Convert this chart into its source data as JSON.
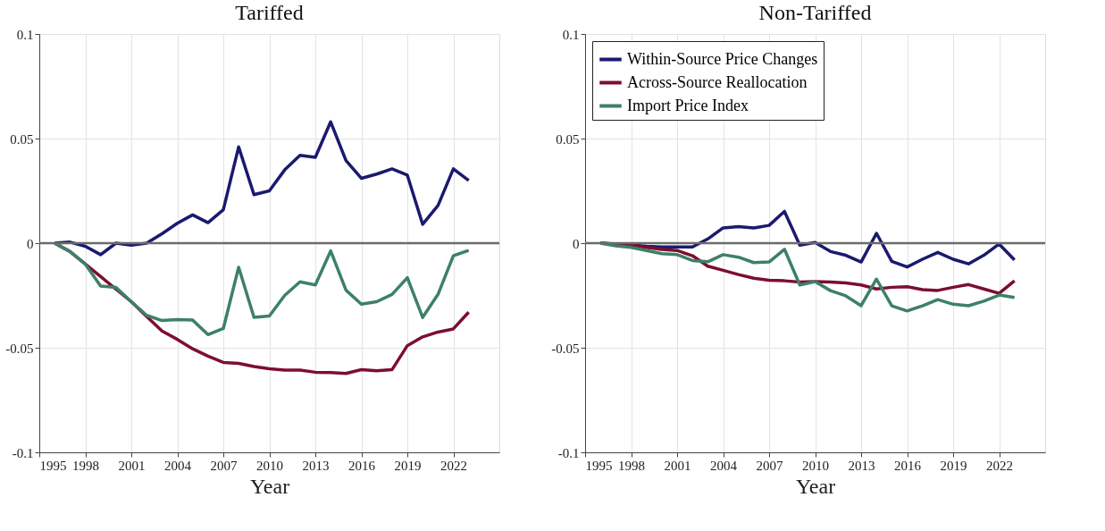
{
  "chart_data": [
    {
      "type": "line",
      "title": "Tariffed",
      "xlabel": "Year",
      "xlim": [
        1995,
        2025
      ],
      "xticks": [
        1995,
        1998,
        2001,
        2004,
        2007,
        2010,
        2013,
        2016,
        2019,
        2022
      ],
      "ylim": [
        -0.1,
        0.1
      ],
      "yticks": [
        -0.1,
        -0.05,
        0,
        0.05,
        0.1
      ],
      "grid": true,
      "legend": false,
      "line_style": "solid",
      "marker": "none",
      "x": [
        1996,
        1997,
        1998,
        1999,
        2000,
        2001,
        2002,
        2003,
        2004,
        2005,
        2006,
        2007,
        2008,
        2009,
        2010,
        2011,
        2012,
        2013,
        2014,
        2015,
        2016,
        2017,
        2018,
        2019,
        2020,
        2021,
        2022,
        2023
      ],
      "ref_lines": [
        {
          "axis": "y",
          "value": 0,
          "color": "#6b6b6b"
        }
      ],
      "series": [
        {
          "color": "#1a1a6e",
          "values": [
            0,
            0.0005,
            -0.0015,
            -0.0055,
            0,
            -0.001,
            0,
            0.0045,
            0.0095,
            0.0135,
            0.0098,
            0.016,
            0.046,
            0.0232,
            0.025,
            0.035,
            0.042,
            0.041,
            0.058,
            0.0395,
            0.031,
            0.033,
            0.0355,
            0.0325,
            0.009,
            0.018,
            0.0355,
            0.03
          ]
        },
        {
          "color": "#7d0e2e",
          "values": [
            0,
            -0.004,
            -0.01,
            -0.016,
            -0.022,
            -0.028,
            -0.035,
            -0.042,
            -0.046,
            -0.0505,
            -0.054,
            -0.057,
            -0.0575,
            -0.059,
            -0.06,
            -0.0607,
            -0.0607,
            -0.0617,
            -0.0619,
            -0.0623,
            -0.0605,
            -0.061,
            -0.0605,
            -0.049,
            -0.0448,
            -0.0425,
            -0.041,
            -0.033
          ]
        },
        {
          "color": "#3d8068",
          "values": [
            0,
            -0.004,
            -0.01,
            -0.0205,
            -0.0212,
            -0.028,
            -0.0345,
            -0.037,
            -0.0365,
            -0.0368,
            -0.0437,
            -0.0408,
            -0.0115,
            -0.0355,
            -0.0348,
            -0.025,
            -0.0185,
            -0.02,
            -0.0037,
            -0.0225,
            -0.0292,
            -0.028,
            -0.0245,
            -0.0165,
            -0.0355,
            -0.0245,
            -0.006,
            -0.0035
          ]
        }
      ]
    },
    {
      "type": "line",
      "title": "Non-Tariffed",
      "xlabel": "Year",
      "xlim": [
        1995,
        2025
      ],
      "xticks": [
        1995,
        1998,
        2001,
        2004,
        2007,
        2010,
        2013,
        2016,
        2019,
        2022
      ],
      "ylim": [
        -0.1,
        0.1
      ],
      "yticks": [
        -0.1,
        -0.05,
        0,
        0.05,
        0.1
      ],
      "grid": true,
      "legend": "top left",
      "line_style": "solid",
      "marker": "none",
      "x": [
        1996,
        1997,
        1998,
        1999,
        2000,
        2001,
        2002,
        2003,
        2004,
        2005,
        2006,
        2007,
        2008,
        2009,
        2010,
        2011,
        2012,
        2013,
        2014,
        2015,
        2016,
        2017,
        2018,
        2019,
        2020,
        2021,
        2022,
        2023
      ],
      "ref_lines": [
        {
          "axis": "y",
          "value": 0,
          "color": "#6b6b6b"
        }
      ],
      "series": [
        {
          "name": "Within-Source Price Changes",
          "color": "#1a1a6e",
          "values": [
            0,
            -0.0004,
            -0.0008,
            -0.0015,
            -0.0018,
            -0.0018,
            -0.0018,
            0.002,
            0.0073,
            0.0079,
            0.0073,
            0.0085,
            0.0152,
            -0.001,
            0.0003,
            -0.004,
            -0.0058,
            -0.009,
            0.0047,
            -0.0087,
            -0.0114,
            -0.0077,
            -0.0044,
            -0.0077,
            -0.0099,
            -0.0058,
            -0.0004,
            -0.008
          ]
        },
        {
          "name": "Across-Source Reallocation",
          "color": "#7d0e2e",
          "values": [
            0,
            -0.0005,
            -0.001,
            -0.002,
            -0.003,
            -0.0035,
            -0.006,
            -0.011,
            -0.013,
            -0.015,
            -0.0168,
            -0.0177,
            -0.018,
            -0.0186,
            -0.0184,
            -0.0186,
            -0.019,
            -0.02,
            -0.0219,
            -0.0211,
            -0.0208,
            -0.0222,
            -0.0226,
            -0.0211,
            -0.0198,
            -0.0219,
            -0.024,
            -0.018
          ]
        },
        {
          "name": "Import Price Index",
          "color": "#3d8068",
          "values": [
            0,
            -0.0013,
            -0.002,
            -0.0035,
            -0.005,
            -0.0055,
            -0.0083,
            -0.0089,
            -0.0055,
            -0.0067,
            -0.0093,
            -0.009,
            -0.0029,
            -0.02,
            -0.0184,
            -0.0227,
            -0.0252,
            -0.0299,
            -0.0172,
            -0.03,
            -0.0324,
            -0.03,
            -0.027,
            -0.0292,
            -0.0299,
            -0.0277,
            -0.0248,
            -0.026
          ]
        }
      ]
    }
  ]
}
